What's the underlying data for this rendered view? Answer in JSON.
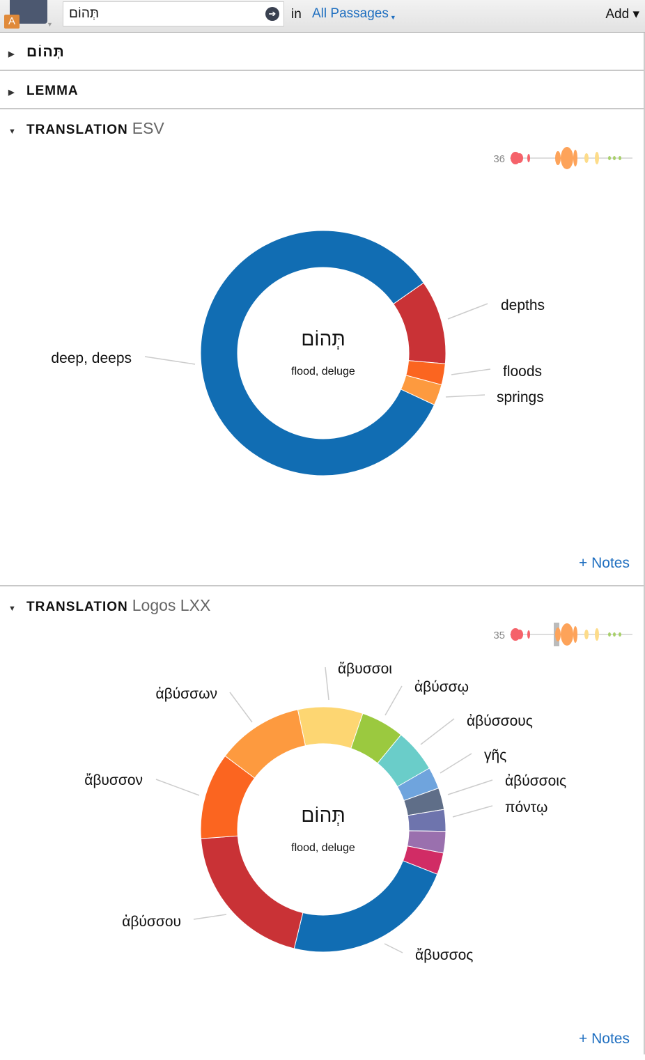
{
  "toolbar": {
    "badge": "A",
    "search_value": "תְּהוֹם",
    "go_icon": "➔",
    "in_label": "in",
    "scope": "All Passages",
    "add_label": "Add ▾"
  },
  "sections": [
    {
      "label": "תְּהוֹם",
      "expanded": false
    },
    {
      "label": "LEMMA",
      "expanded": false
    }
  ],
  "esv": {
    "label": "TRANSLATION",
    "version": "ESV",
    "count": "36",
    "center_word": "תְּהוֹם",
    "center_gloss": "flood, deluge",
    "notes": "+ Notes"
  },
  "lxx": {
    "label": "TRANSLATION",
    "version": "Logos LXX",
    "count": "35",
    "center_word": "תְּהוֹם",
    "center_gloss": "flood, deluge",
    "notes": "+ Notes"
  },
  "chart_data": [
    {
      "type": "pie",
      "title": "TRANSLATION ESV",
      "total": 36,
      "slices": [
        {
          "label": "depths",
          "value": 4,
          "color": "#c93236"
        },
        {
          "label": "floods",
          "value": 1,
          "color": "#fb6520"
        },
        {
          "label": "springs",
          "value": 1,
          "color": "#fd9a3f"
        },
        {
          "label": "deep, deeps",
          "value": 30,
          "color": "#116db3"
        }
      ]
    },
    {
      "type": "pie",
      "title": "TRANSLATION Logos LXX",
      "total": 35,
      "slices": [
        {
          "label": "ἄβυσσοι",
          "value": 3,
          "color": "#fdd672"
        },
        {
          "label": "ἀβύσσῳ",
          "value": 2,
          "color": "#9bc93f"
        },
        {
          "label": "ἀβύσσους",
          "value": 2,
          "color": "#6acdc9"
        },
        {
          "label": "γῆς",
          "value": 1,
          "color": "#6fa4dd"
        },
        {
          "label": "ἀβύσσοις",
          "value": 1,
          "color": "#5f6e88"
        },
        {
          "label": "πόντῳ",
          "value": 1,
          "color": "#6e74ad"
        },
        {
          "label": null,
          "value": 1,
          "color": "#9a70ae"
        },
        {
          "label": null,
          "value": 1,
          "color": "#d12c65"
        },
        {
          "label": "ἄβυσσος",
          "value": 8,
          "color": "#116db3"
        },
        {
          "label": "ἀβύσσου",
          "value": 7,
          "color": "#c93236"
        },
        {
          "label": "ἄβυσσον",
          "value": 4,
          "color": "#fb6520"
        },
        {
          "label": "ἀβύσσων",
          "value": 4,
          "color": "#fd9a3f"
        }
      ]
    }
  ]
}
